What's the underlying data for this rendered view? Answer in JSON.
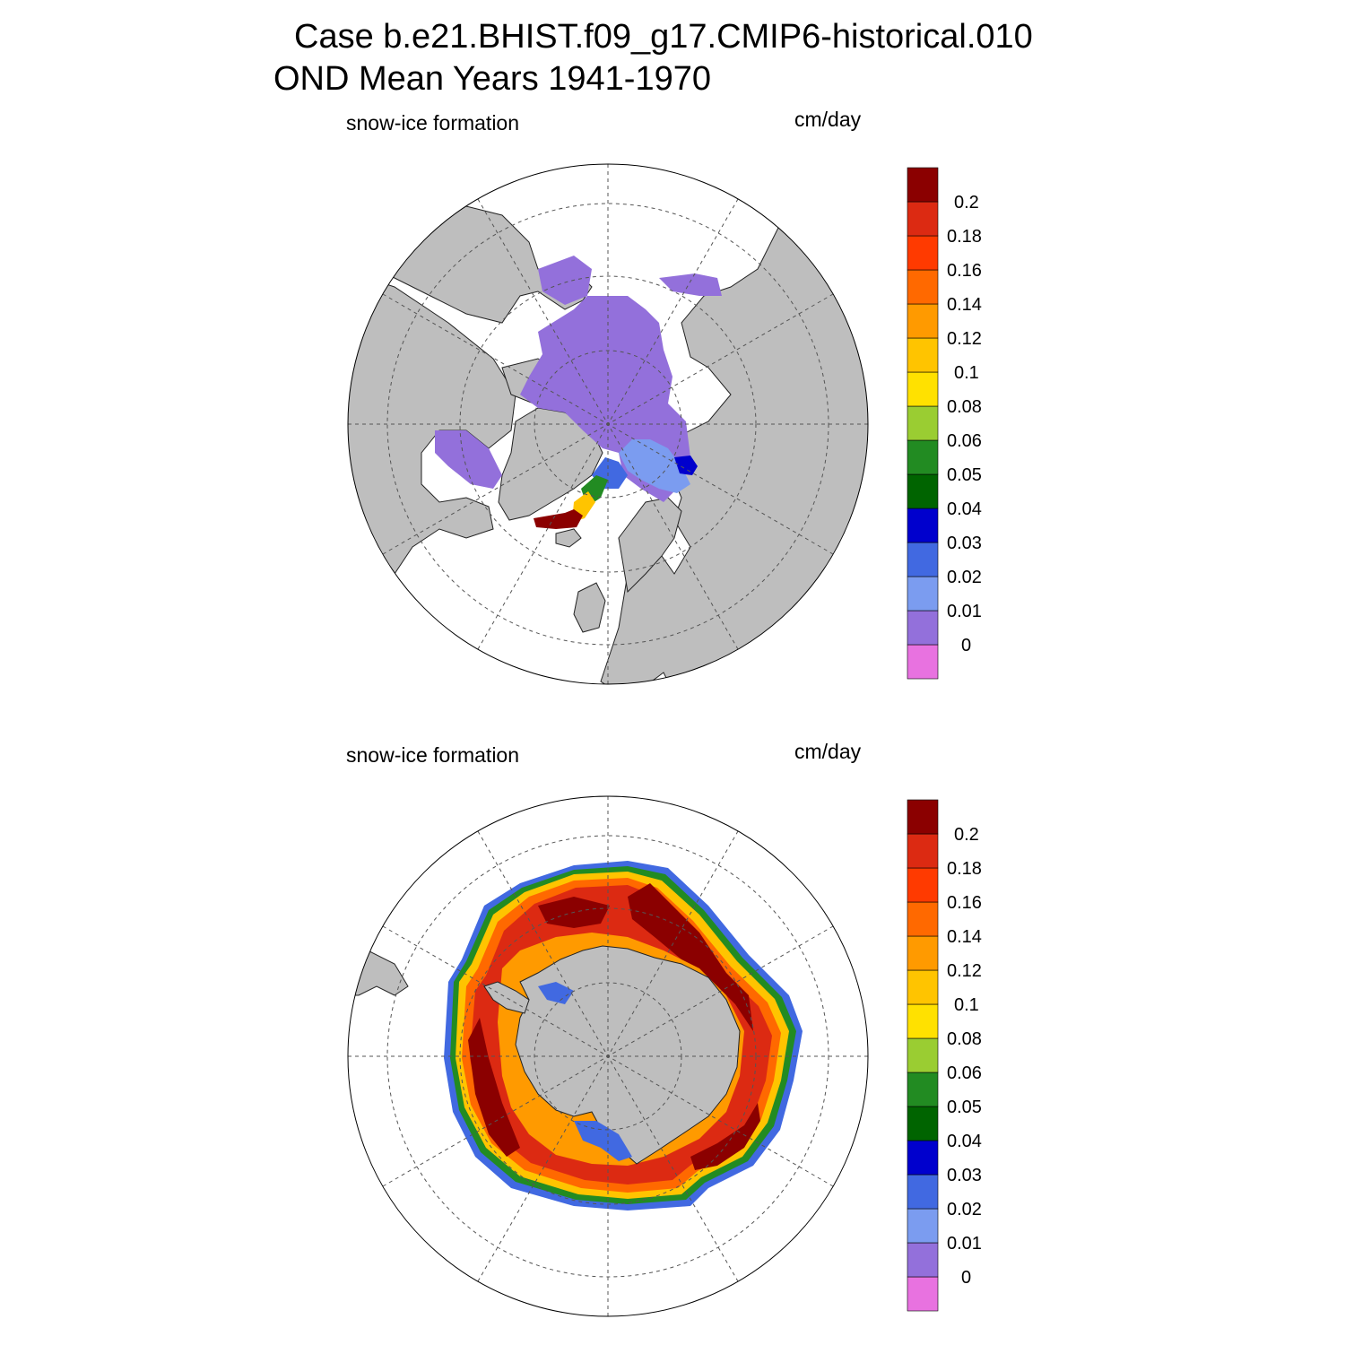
{
  "title": {
    "line1": "Case b.e21.BHIST.f09_g17.CMIP6-historical.010",
    "line2": "OND Mean   Years 1941-1970"
  },
  "panels": [
    {
      "id": "north",
      "hemisphere": "Northern Hemisphere",
      "variable_label": "snow-ice formation",
      "units_label": "cm/day"
    },
    {
      "id": "south",
      "hemisphere": "Southern Hemisphere",
      "variable_label": "snow-ice formation",
      "units_label": "cm/day"
    }
  ],
  "colorbar": {
    "levels": [
      "0",
      "0.01",
      "0.02",
      "0.03",
      "0.04",
      "0.05",
      "0.06",
      "0.08",
      "0.1",
      "0.12",
      "0.14",
      "0.16",
      "0.18",
      "0.2"
    ],
    "colors": [
      "#e872e0",
      "#9370db",
      "#7b9cf0",
      "#4169e1",
      "#0000cd",
      "#006400",
      "#228b22",
      "#9acd32",
      "#ffe100",
      "#ffc400",
      "#ff9a00",
      "#ff6900",
      "#ff3a00",
      "#dc2a12",
      "#8b0000"
    ]
  },
  "map_colors": {
    "land": "#bebebe",
    "ocean": "#ffffff",
    "grid": "#555555"
  }
}
